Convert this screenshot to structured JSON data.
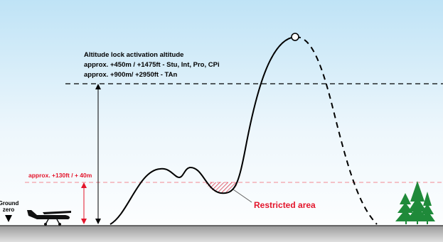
{
  "labels": {
    "activation_title": "Altitude lock activation altitude",
    "activation_line_1": "approx. +450m / +1475ft - Stu, Int, Pro, CPi",
    "activation_line_2": "approx. +900m/ +2950ft - TAn",
    "low_altitude": "approx. +130ft / + 40m",
    "ground_zero": [
      "Ground",
      "zero"
    ],
    "restricted_area": "Restricted area"
  }
}
